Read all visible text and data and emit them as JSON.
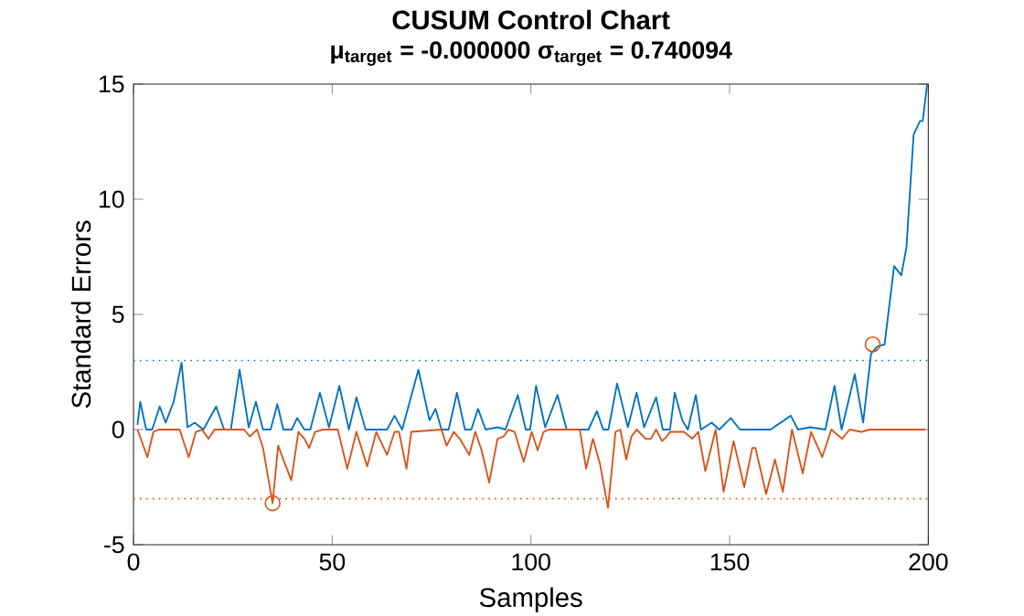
{
  "chart_data": {
    "type": "line",
    "title": "CUSUM Control Chart",
    "subtitle": "μ$_{target}$ = -0.000000 σ$_{target}$ = 0.740094",
    "xlabel": "Samples",
    "ylabel": "Standard Errors",
    "xlim": [
      0,
      200
    ],
    "ylim": [
      -5,
      15
    ],
    "xticks": [
      0,
      50,
      100,
      150,
      200
    ],
    "yticks": [
      -5,
      0,
      5,
      10,
      15
    ],
    "grid": false,
    "marker": "none",
    "line_style": "solid",
    "ref_lines": [
      {
        "axis": "y",
        "value": 3,
        "color": "#0072bd",
        "line_style": "dotted"
      },
      {
        "axis": "y",
        "value": -3,
        "color": "#d95319",
        "line_style": "dotted"
      }
    ],
    "series": [
      {
        "color": "#0072bd",
        "x": [
          1,
          1.7,
          3.2,
          4.7,
          6.6,
          8.1,
          10.1,
          12.1,
          13.6,
          15.4,
          17.6,
          20.8,
          22.8,
          24.5,
          26.7,
          29,
          30.8,
          32.6,
          34.5,
          36.2,
          37.7,
          39.8,
          41.2,
          43,
          44.5,
          46.9,
          49.2,
          51.8,
          54.2,
          56.1,
          58.4,
          63.8,
          65.7,
          67.6,
          71.7,
          74.5,
          76,
          77.5,
          79.3,
          81.4,
          83.4,
          85,
          86.7,
          88.6,
          91.6,
          93.6,
          96.7,
          98.7,
          99.8,
          101.3,
          103.6,
          106.7,
          109,
          114.5,
          116.6,
          118.2,
          119.5,
          121.7,
          124.4,
          126.6,
          128.5,
          131.5,
          133.2,
          135,
          136.2,
          138.1,
          139.5,
          141.5,
          142.8,
          145.5,
          147.4,
          150.3,
          152.6,
          155.7,
          160.3,
          165.4,
          167.2,
          170.3,
          174.1,
          176.4,
          178.2,
          181.5,
          183.6,
          185.6,
          187.1,
          189,
          191.4,
          193.2,
          194.5,
          196.3,
          197.9,
          198.6,
          199.7
        ],
        "values": [
          0.2,
          1.2,
          0,
          0,
          1,
          0.3,
          1.2,
          2.9,
          0.1,
          0.3,
          0,
          1,
          0,
          0,
          2.6,
          0.1,
          1.2,
          0,
          0,
          1.1,
          0,
          0,
          0.5,
          0,
          0,
          1.6,
          0.1,
          1.9,
          0,
          1.4,
          0,
          0,
          0.6,
          0,
          2.6,
          0.4,
          0.9,
          0,
          0,
          1.6,
          0,
          0,
          0.9,
          0,
          0.1,
          0,
          1.5,
          0,
          0,
          1.9,
          0.1,
          1.5,
          0,
          0,
          0.8,
          0,
          0,
          2,
          0.1,
          1.6,
          0.1,
          1.4,
          0,
          0,
          1.6,
          0.4,
          0,
          1.5,
          0,
          0.3,
          0,
          0.5,
          0,
          0,
          0,
          0.6,
          0,
          0.1,
          0,
          1.9,
          0,
          2.4,
          0.3,
          3.3,
          3.6,
          3.7,
          7.1,
          6.7,
          7.9,
          12.8,
          13.4,
          13.4,
          15
        ]
      },
      {
        "color": "#d95319",
        "x": [
          1,
          3.5,
          5,
          6.3,
          11.6,
          13.9,
          15.7,
          17.2,
          18.9,
          20.4,
          27.8,
          29.3,
          31.1,
          32.6,
          35,
          36.4,
          37.7,
          39.7,
          41.5,
          43,
          44.2,
          45.7,
          47.6,
          51.4,
          53.8,
          56.1,
          58.8,
          61.1,
          63.8,
          65.7,
          66.8,
          68.7,
          69.9,
          77.5,
          78.8,
          80.6,
          82.1,
          84.5,
          86,
          87.6,
          89.5,
          91.6,
          93.1,
          94.4,
          95.9,
          98.2,
          100.2,
          101.7,
          103.2,
          104.5,
          112.3,
          113.9,
          115.6,
          117.4,
          119.4,
          121.3,
          122.5,
          124,
          125.3,
          126.6,
          128.9,
          130.2,
          131.5,
          133,
          134.2,
          135,
          138.5,
          140.6,
          142.1,
          143.9,
          146.5,
          148.5,
          151,
          153.7,
          155.7,
          156.5,
          159.2,
          161.4,
          163.4,
          165.7,
          168.4,
          170.5,
          173.3,
          175.6,
          178.3,
          180.2,
          183.2,
          185.2,
          199.3
        ],
        "values": [
          0,
          -1.2,
          -0.1,
          0,
          0,
          -1.2,
          -0.1,
          0,
          -0.4,
          0,
          0,
          -0.3,
          0,
          -0.8,
          -3.2,
          -0.7,
          -1.3,
          -2.2,
          -0.1,
          -0.4,
          -0.8,
          -0.1,
          0,
          0,
          -1.7,
          -0.1,
          -1.6,
          -0.1,
          -1.1,
          -0.1,
          -0.1,
          -1.7,
          -0.1,
          0,
          -0.7,
          -0.1,
          -0.4,
          -1.1,
          -0.1,
          -0.9,
          -2.3,
          -0.4,
          -0.3,
          0,
          -0.1,
          -1.4,
          -0.1,
          -0.9,
          -0.1,
          0,
          0,
          -1.7,
          -0.4,
          -1.5,
          -3.4,
          -0.1,
          0,
          -1.3,
          -0.3,
          0,
          -0.4,
          -0.4,
          0,
          -0.5,
          -0.3,
          -0.1,
          -0.1,
          -0.4,
          -0.1,
          -1.8,
          0,
          -2.7,
          -0.5,
          -2.5,
          -0.8,
          -0.8,
          -2.8,
          -1.3,
          -2.7,
          0,
          -1.9,
          -0.1,
          -1.2,
          0,
          -0.4,
          0,
          -0.1,
          0,
          0
        ]
      },
      {
        "type": "scatter",
        "marker": "circle",
        "color": "#d95319",
        "x": [
          35,
          186
        ],
        "values": [
          -3.2,
          3.7
        ]
      }
    ]
  }
}
